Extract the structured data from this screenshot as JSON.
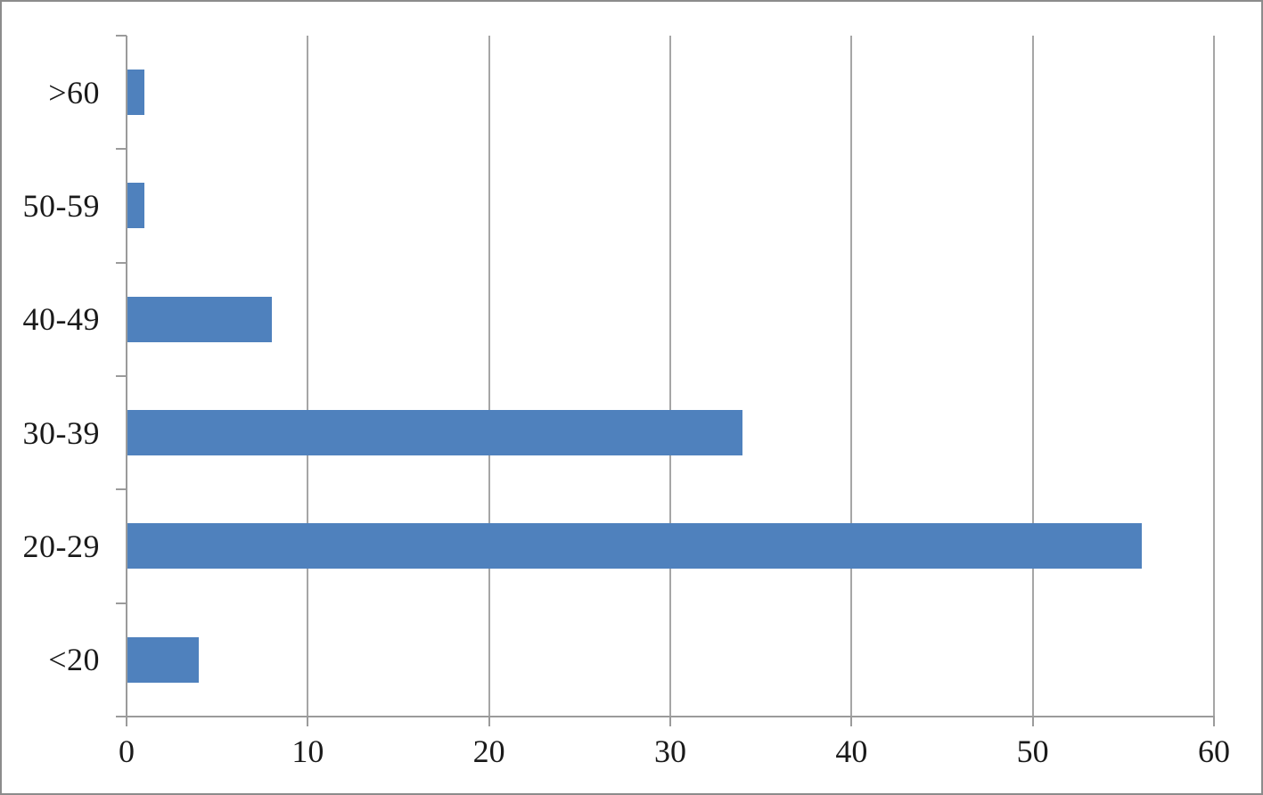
{
  "chart_data": {
    "type": "bar",
    "orientation": "horizontal",
    "title": "",
    "xlabel": "",
    "ylabel": "",
    "categories": [
      ">60",
      "50-59",
      "40-49",
      "30-39",
      "20-29",
      "<20"
    ],
    "values": [
      1,
      1,
      8,
      34,
      56,
      4
    ],
    "category_order": "top-to-bottom",
    "x_ticks": [
      "0",
      "10",
      "20",
      "30",
      "40",
      "50",
      "60"
    ],
    "x_tick_values": [
      0,
      10,
      20,
      30,
      40,
      50,
      60
    ],
    "xlim": [
      0,
      60
    ],
    "grid": "vertical-gridlines-only",
    "legend": "none",
    "colors": {
      "bar": "#4F81BD",
      "axis": "#9B9B9B",
      "gridline": "#A6A6A6",
      "frame_border": "#8C8C8C",
      "background": "#FFFFFF",
      "text": "#1A1A1A"
    }
  }
}
